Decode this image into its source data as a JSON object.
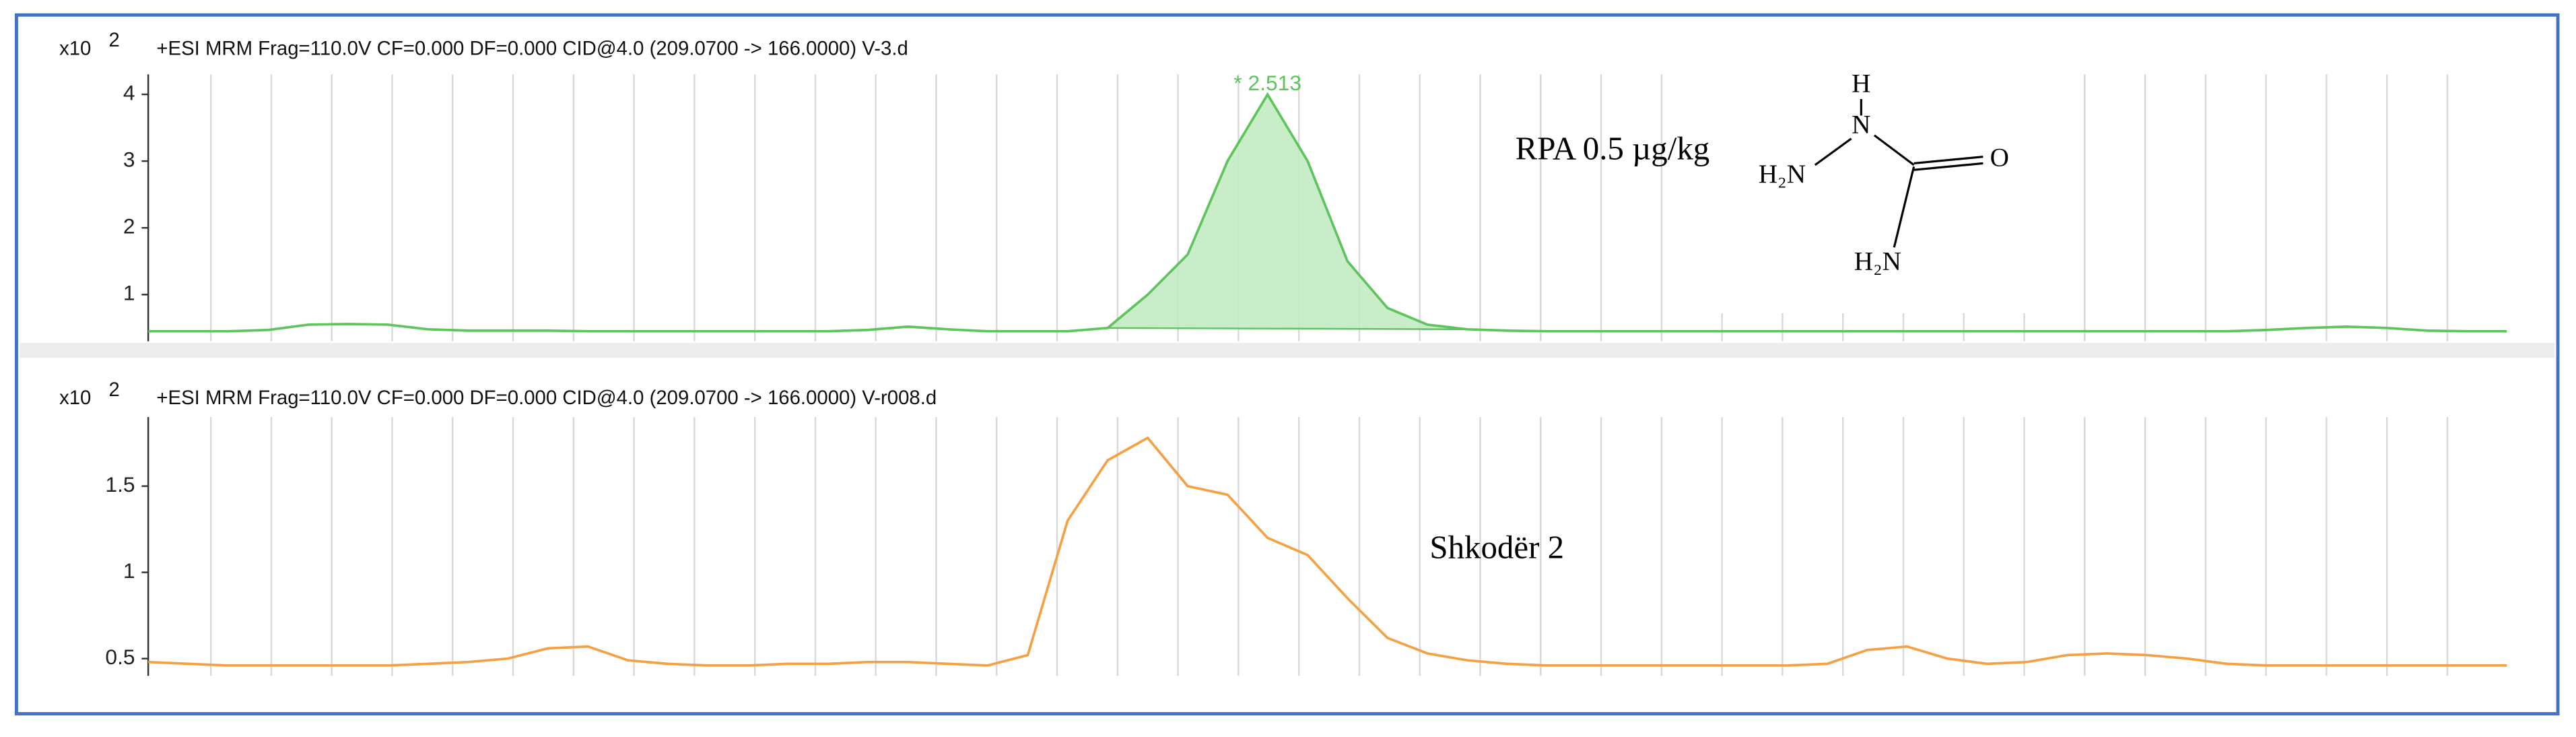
{
  "chart_data": [
    {
      "type": "line",
      "title": "+ESI MRM Frag=110.0V CF=0.000 DF=0.000 CID@4.0 (209.0700 -> 166.0000) V-3.d",
      "y_multiplier": {
        "base": "x10",
        "exponent": "2"
      },
      "ylim": [
        0.3,
        4.3
      ],
      "yticks": [
        1,
        2,
        3,
        4
      ],
      "color": "#5ec45e",
      "fill": "#bfe9bf",
      "peak_label": "* 2.513",
      "annotation": "RPA 0.5 µg/kg",
      "values": [
        0.45,
        0.45,
        0.45,
        0.47,
        0.55,
        0.56,
        0.55,
        0.48,
        0.46,
        0.46,
        0.46,
        0.45,
        0.45,
        0.45,
        0.45,
        0.45,
        0.45,
        0.45,
        0.47,
        0.52,
        0.48,
        0.45,
        0.45,
        0.45,
        0.5,
        1.0,
        1.6,
        3.0,
        4.0,
        3.0,
        1.5,
        0.8,
        0.55,
        0.48,
        0.46,
        0.45,
        0.45,
        0.45,
        0.45,
        0.45,
        0.45,
        0.45,
        0.45,
        0.45,
        0.45,
        0.45,
        0.45,
        0.45,
        0.45,
        0.45,
        0.45,
        0.45,
        0.45,
        0.47,
        0.5,
        0.52,
        0.5,
        0.46,
        0.45,
        0.45
      ]
    },
    {
      "type": "line",
      "title": "+ESI MRM Frag=110.0V CF=0.000 DF=0.000 CID@4.0 (209.0700 -> 166.0000) V-r008.d",
      "y_multiplier": {
        "base": "x10",
        "exponent": "2"
      },
      "ylim": [
        0.4,
        1.9
      ],
      "yticks": [
        0.5,
        1,
        1.5
      ],
      "color": "#f5a043",
      "annotation": "Shkodër 2",
      "values": [
        0.48,
        0.47,
        0.46,
        0.46,
        0.46,
        0.46,
        0.46,
        0.47,
        0.48,
        0.5,
        0.56,
        0.57,
        0.49,
        0.47,
        0.46,
        0.46,
        0.47,
        0.47,
        0.48,
        0.48,
        0.47,
        0.46,
        0.52,
        1.3,
        1.65,
        1.78,
        1.5,
        1.45,
        1.2,
        1.1,
        0.85,
        0.62,
        0.53,
        0.49,
        0.47,
        0.46,
        0.46,
        0.46,
        0.46,
        0.46,
        0.46,
        0.46,
        0.47,
        0.55,
        0.57,
        0.5,
        0.47,
        0.48,
        0.52,
        0.53,
        0.52,
        0.5,
        0.47,
        0.46,
        0.46,
        0.46,
        0.46,
        0.46,
        0.46,
        0.46
      ]
    }
  ],
  "structure": {
    "atoms": [
      "H",
      "N",
      "H₂N",
      "O",
      "H₂N"
    ]
  }
}
